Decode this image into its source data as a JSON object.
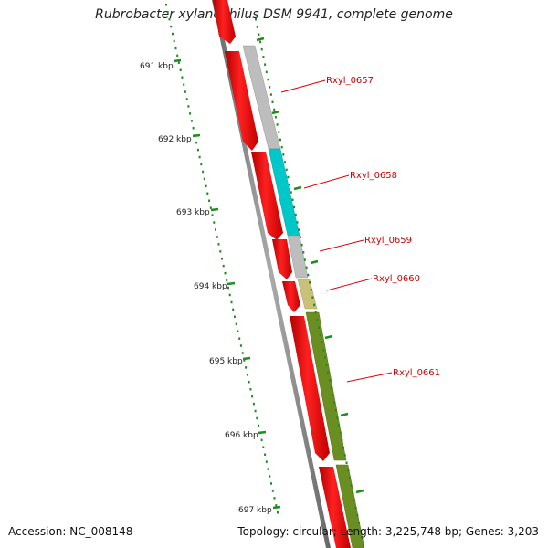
{
  "title": "Rubrobacter xylanophilus DSM 9941, complete genome",
  "accession": "Accession: NC_008148",
  "summary": "Topology: circular; Length: 3,225,748 bp; Genes: 3,203",
  "ruler_labels": [
    "691 kbp",
    "692 kbp",
    "693 kbp",
    "694 kbp",
    "695 kbp",
    "696 kbp",
    "697 kbp"
  ],
  "gene_labels": [
    "Rxyl_0657",
    "Rxyl_0658",
    "Rxyl_0659",
    "Rxyl_0660",
    "Rxyl_0661"
  ],
  "colors": {
    "forward_strand": "#ff0000",
    "backbone": "#8a8a8a",
    "tick": "#228b22",
    "label": "#cc0000",
    "gene_0657": "#bdbdbd",
    "gene_0658": "#00cccc",
    "gene_0659": "#bdbdbd",
    "gene_0660": "#c9c07a",
    "gene_0661": "#6b8e23"
  }
}
